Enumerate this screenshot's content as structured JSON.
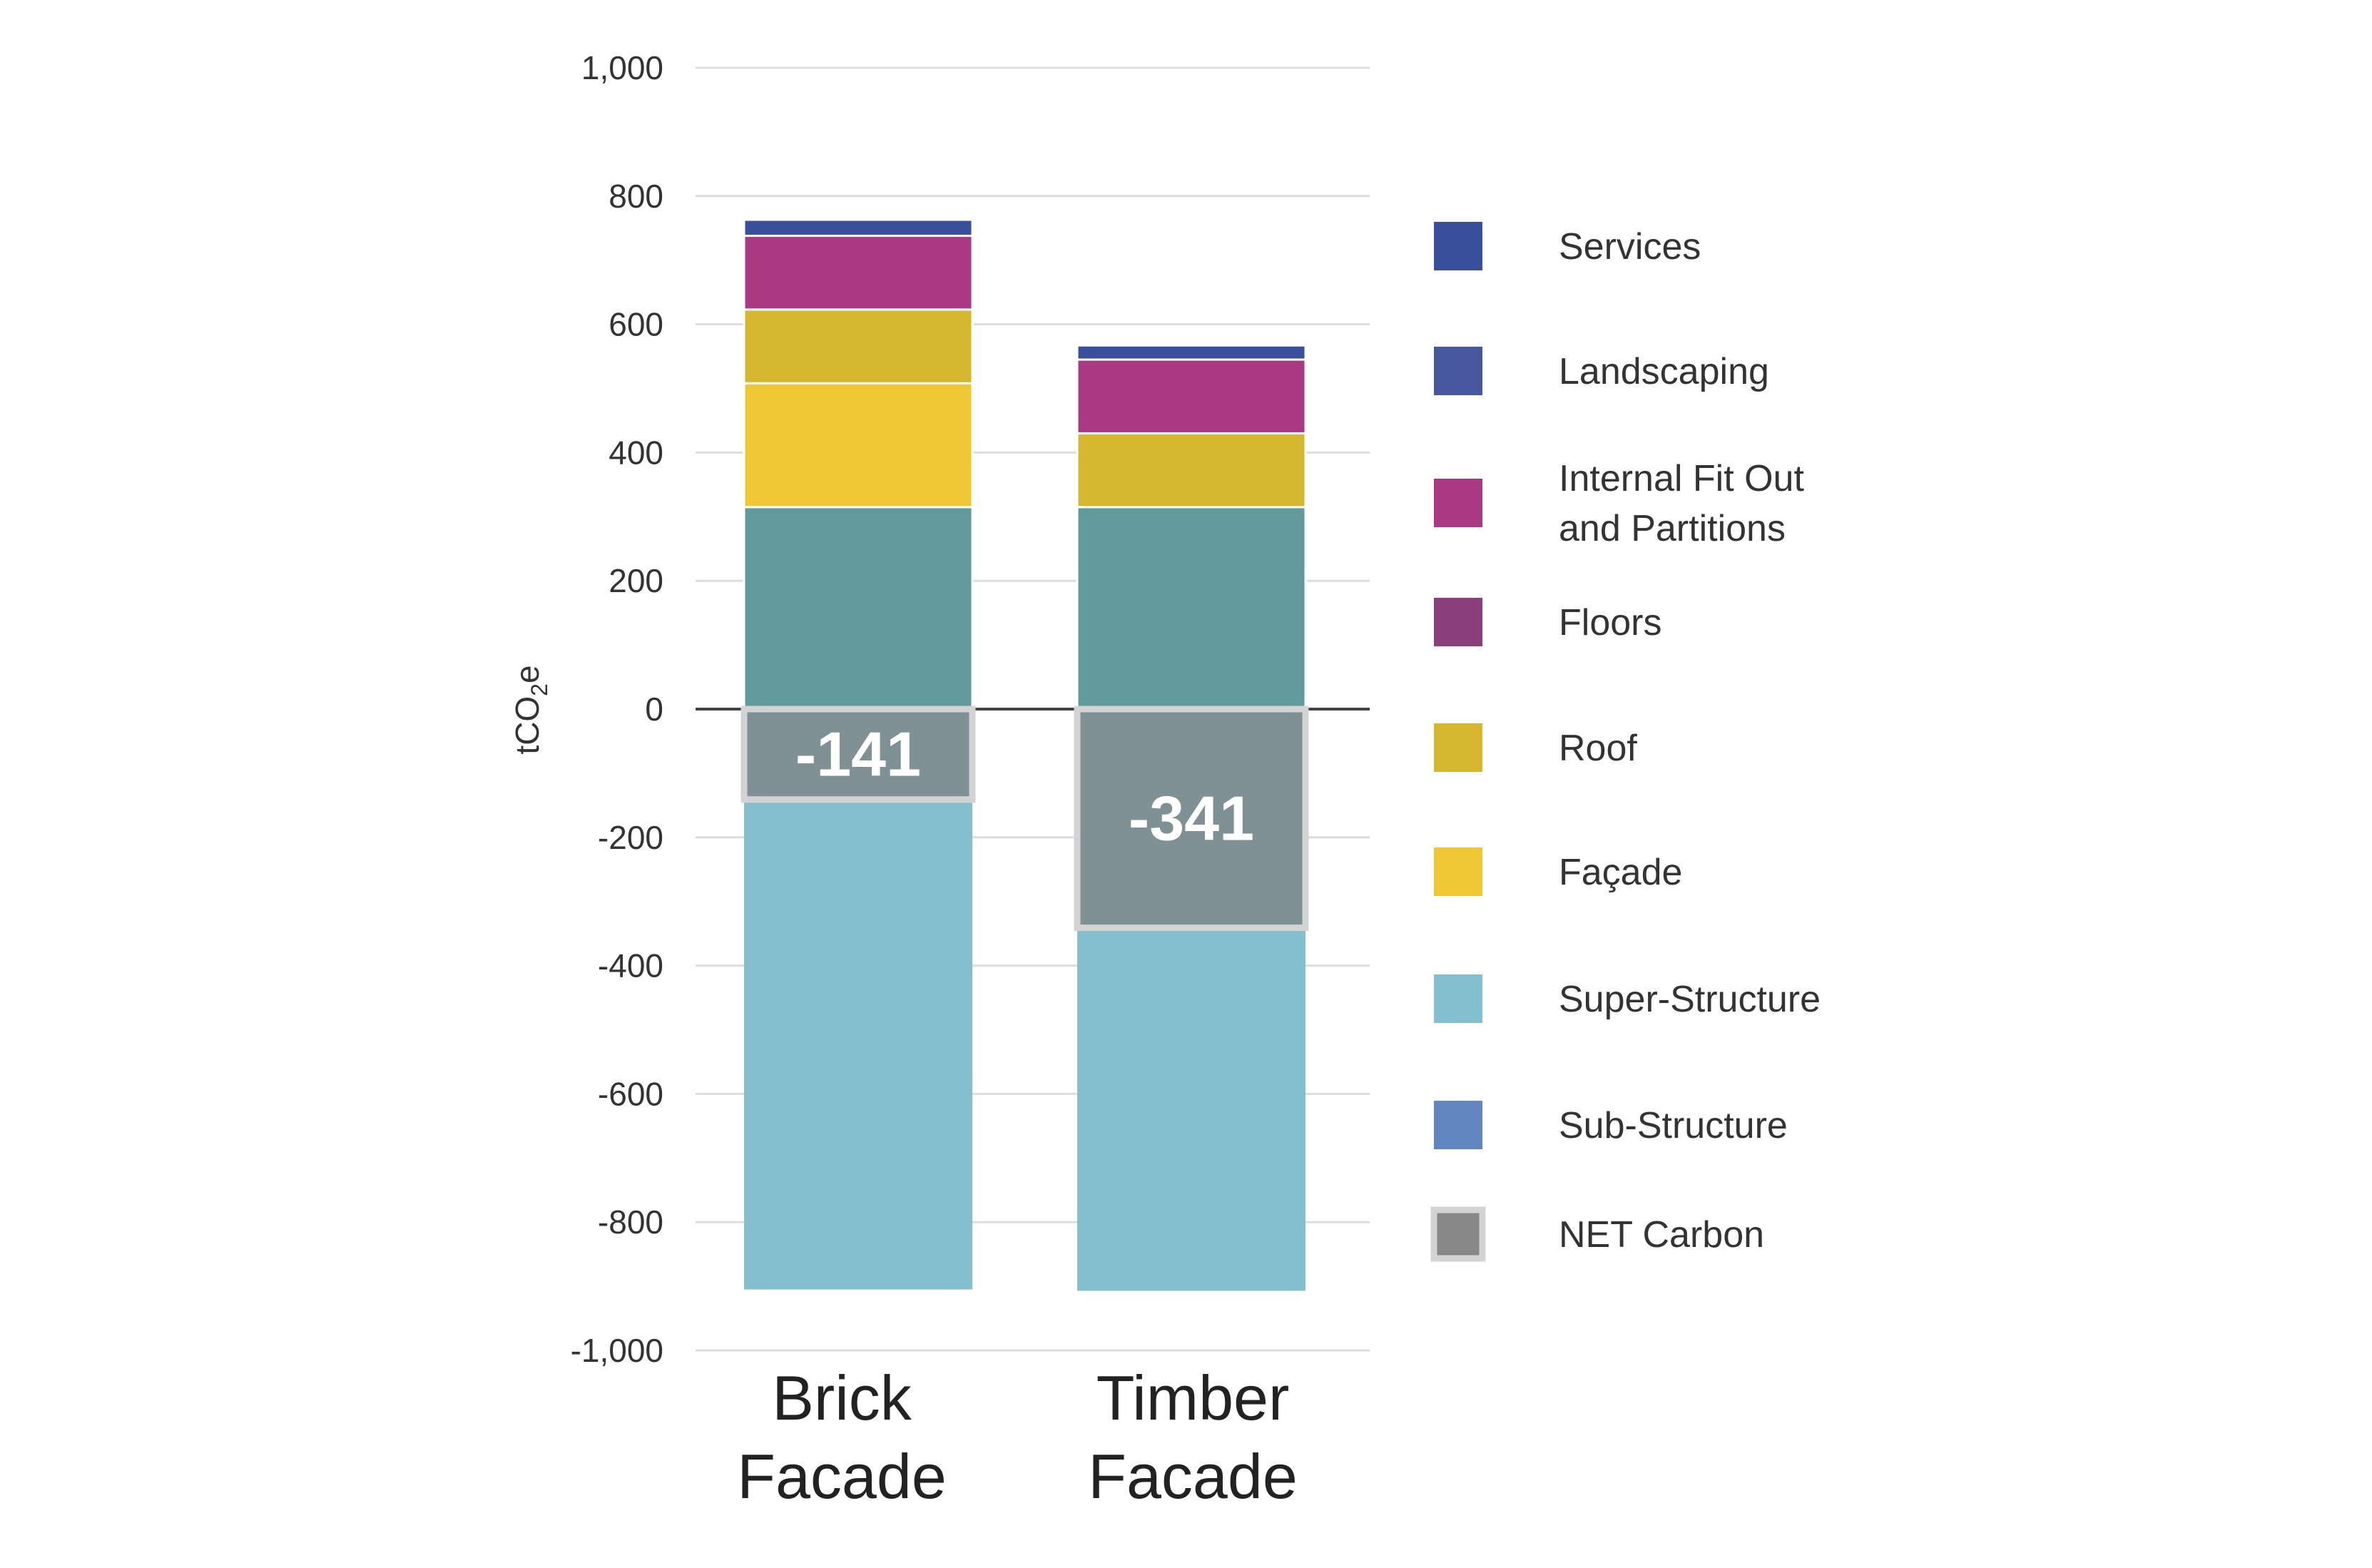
{
  "chart_data": {
    "type": "bar",
    "stacked": true,
    "ylabel": "tCO2e",
    "ylim": [
      -1000,
      1000
    ],
    "yticks": [
      1000,
      800,
      600,
      400,
      200,
      0,
      -200,
      -400,
      -600,
      -800,
      -1000
    ],
    "ytick_labels": [
      "1,000",
      "800",
      "600",
      "400",
      "200",
      "0",
      "-200",
      "-400",
      "-600",
      "-800",
      "-1,000"
    ],
    "grid": true,
    "legend_position": "right",
    "categories": [
      {
        "lines": [
          "Brick",
          "Facade"
        ]
      },
      {
        "lines": [
          "Timber",
          "Facade"
        ]
      }
    ],
    "series": [
      {
        "name": "Services",
        "color": "#3a4f9c",
        "values": [
          25,
          22
        ]
      },
      {
        "name": "Landscaping",
        "color": "#46579e",
        "values": [
          0,
          0
        ]
      },
      {
        "name": "Internal Fit Out and Partitions",
        "legend_lines": [
          "Internal Fit Out",
          "and Partitions"
        ],
        "color": "#aa3984",
        "values": [
          115,
          115
        ]
      },
      {
        "name": "Floors",
        "color": "#8a3f7b",
        "values": [
          0,
          0
        ]
      },
      {
        "name": "Roof",
        "color": "#d6b52f",
        "values": [
          115,
          115
        ]
      },
      {
        "name": "Façade",
        "color": "#efc735",
        "values": [
          193,
          0
        ]
      },
      {
        "name": "Super-Structure",
        "color": "#84bfcd",
        "values": [
          -905,
          -907
        ]
      },
      {
        "name": "Sub-Structure",
        "color": "#6284bf",
        "values": [
          0,
          0
        ]
      },
      {
        "name": "Sub-Structure (teal)",
        "legend_hidden": true,
        "color": "#62999a",
        "values": [
          315,
          315
        ]
      }
    ],
    "net_carbon": {
      "name": "NET Carbon",
      "color": "#7f9195",
      "border": "#d3d3d3",
      "values": [
        -141,
        -341
      ],
      "labels": [
        "-141",
        "-341"
      ]
    }
  }
}
